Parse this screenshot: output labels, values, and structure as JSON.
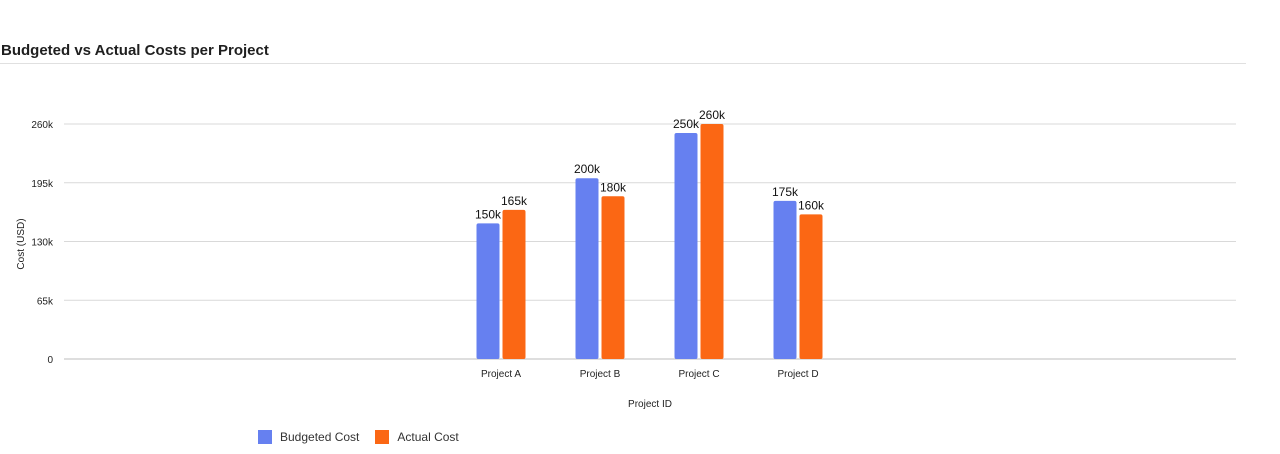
{
  "chart_data": {
    "type": "bar",
    "title": "Budgeted vs Actual Costs per Project",
    "xlabel": "Project ID",
    "ylabel": "Cost (USD)",
    "categories": [
      "Project A",
      "Project B",
      "Project C",
      "Project D"
    ],
    "series": [
      {
        "name": "Budgeted Cost",
        "color": "#6680f0",
        "values": [
          150000,
          200000,
          250000,
          175000
        ],
        "labels": [
          "150k",
          "200k",
          "250k",
          "175k"
        ]
      },
      {
        "name": "Actual Cost",
        "color": "#fb6714",
        "values": [
          165000,
          180000,
          260000,
          160000
        ],
        "labels": [
          "165k",
          "180k",
          "260k",
          "160k"
        ]
      }
    ],
    "ylim": [
      0,
      260000
    ],
    "yticks": [
      {
        "value": 0,
        "label": "0"
      },
      {
        "value": 65000,
        "label": "65k"
      },
      {
        "value": 130000,
        "label": "130k"
      },
      {
        "value": 195000,
        "label": "195k"
      },
      {
        "value": 260000,
        "label": "260k"
      }
    ],
    "grid": true,
    "legend_position": "bottom-left"
  }
}
